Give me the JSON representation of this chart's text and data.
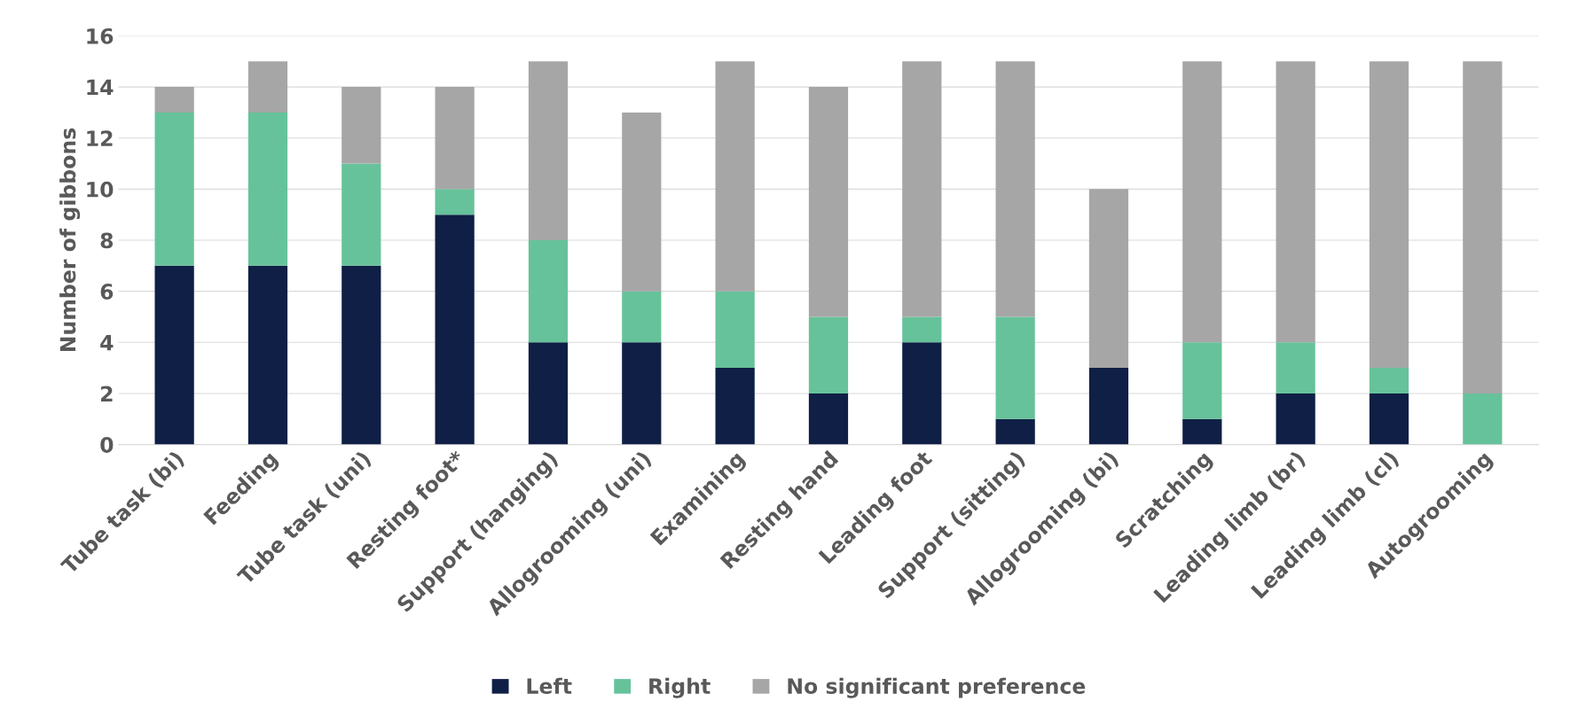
{
  "chart_data": {
    "type": "bar",
    "stacked": true,
    "ylabel": "Number of gibbons",
    "categories": [
      "Tube task (bi)",
      "Feeding",
      "Tube task (uni)",
      "Resting foot*",
      "Support (hanging)",
      "Allogrooming (uni)",
      "Examining",
      "Resting hand",
      "Leading foot",
      "Support (sitting)",
      "Allogrooming (bi)",
      "Scratching",
      "Leading limb (br)",
      "Leading limb (cl)",
      "Autogrooming"
    ],
    "series": [
      {
        "name": "Left",
        "color": "#0f1f45",
        "values": [
          7,
          7,
          7,
          9,
          4,
          4,
          3,
          2,
          4,
          1,
          3,
          1,
          2,
          2,
          0
        ]
      },
      {
        "name": "Right",
        "color": "#66c29a",
        "values": [
          6,
          6,
          4,
          1,
          4,
          2,
          3,
          3,
          1,
          4,
          0,
          3,
          2,
          1,
          2
        ]
      },
      {
        "name": "No significant preference",
        "color": "#a6a6a6",
        "values": [
          1,
          2,
          3,
          4,
          7,
          7,
          9,
          9,
          10,
          10,
          7,
          11,
          11,
          12,
          13
        ]
      }
    ],
    "ylim": [
      0,
      16
    ],
    "yticks": [
      0,
      2,
      4,
      6,
      8,
      10,
      12,
      14,
      16
    ],
    "grid": "y",
    "legend": "bottom"
  }
}
